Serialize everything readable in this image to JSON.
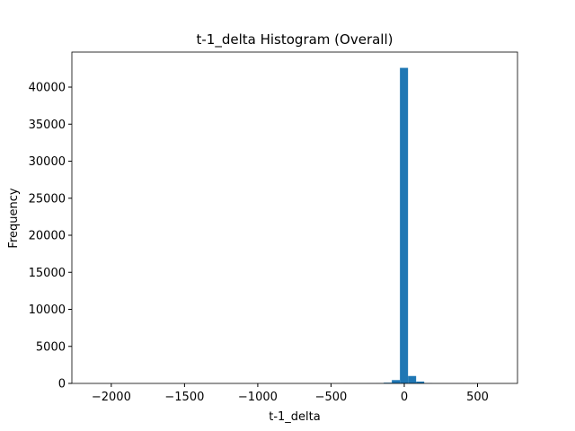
{
  "chart_data": {
    "type": "histogram",
    "title": "t-1_delta Histogram (Overall)",
    "x_label": "t-1_delta",
    "y_label": "Frequency",
    "color": "#1f77b4",
    "bins": [
      -2131,
      -2075.7,
      -2020.4,
      -1965.1,
      -1909.8,
      -1854.5,
      -1799.2,
      -1743.9,
      -1688.6,
      -1633.3,
      -1578,
      -1522.7,
      -1467.4,
      -1412.1,
      -1356.8,
      -1301.5,
      -1246.2,
      -1190.9,
      -1135.6,
      -1080.3,
      -1025,
      -969.7,
      -914.4,
      -859.1,
      -803.8,
      -748.5,
      -693.2,
      -637.9,
      -582.6,
      -527.3,
      -472,
      -416.7,
      -361.4,
      -306.1,
      -250.8,
      -195.5,
      -140.2,
      -84.9,
      -29.6,
      25.7,
      81,
      136.3,
      191.6,
      246.9,
      302.2,
      357.5,
      412.8,
      468.1,
      523.4,
      578.7,
      634
    ],
    "counts": [
      1,
      0,
      0,
      0,
      0,
      0,
      0,
      0,
      0,
      0,
      0,
      0,
      0,
      0,
      0,
      0,
      0,
      0,
      0,
      0,
      0,
      0,
      0,
      0,
      0,
      0,
      0,
      0,
      0,
      0,
      1,
      2,
      3,
      8,
      15,
      20,
      100,
      450,
      42600,
      1000,
      250,
      30,
      10,
      5,
      3,
      2,
      1,
      1,
      0,
      1
    ],
    "xlim": [
      -2269,
      773
    ],
    "ylim": [
      0,
      44730
    ],
    "xticks": [
      {
        "value": -2000,
        "label": "−2000"
      },
      {
        "value": -1500,
        "label": "−1500"
      },
      {
        "value": -1000,
        "label": "−1000"
      },
      {
        "value": -500,
        "label": "−500"
      },
      0,
      500
    ],
    "yticks": [
      0,
      5000,
      10000,
      15000,
      20000,
      25000,
      30000,
      35000,
      40000
    ]
  }
}
